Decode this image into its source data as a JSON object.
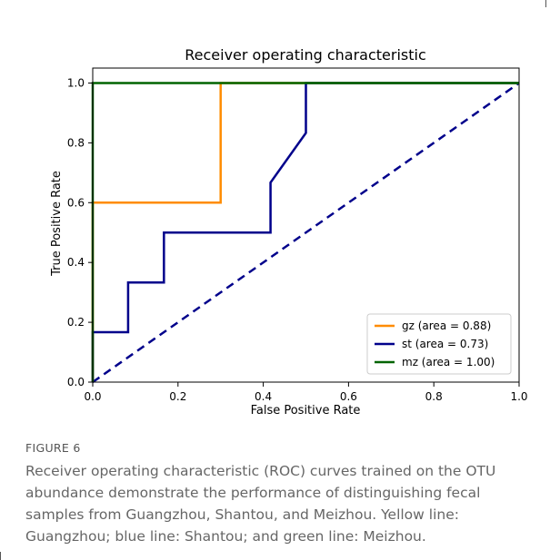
{
  "chart_data": {
    "type": "line",
    "title": "Receiver operating characteristic",
    "xlabel": "False Positive Rate",
    "ylabel": "True Positive Rate",
    "xlim": [
      0.0,
      1.0
    ],
    "ylim": [
      0.0,
      1.05
    ],
    "xticks": [
      "0.0",
      "0.2",
      "0.4",
      "0.6",
      "0.8",
      "1.0"
    ],
    "yticks": [
      "0.0",
      "0.2",
      "0.4",
      "0.6",
      "0.8",
      "1.0"
    ],
    "grid": false,
    "legend_position": "lower-right",
    "series": [
      {
        "name": "gz (area = 0.88)",
        "color": "#ff8c00",
        "x": [
          0.0,
          0.0,
          0.3,
          0.3,
          1.0
        ],
        "y": [
          0.0,
          0.6,
          0.6,
          1.0,
          1.0
        ]
      },
      {
        "name": "st (area = 0.73)",
        "color": "#00008b",
        "x": [
          0.0,
          0.0,
          0.083,
          0.083,
          0.167,
          0.167,
          0.417,
          0.417,
          0.5,
          0.5,
          1.0
        ],
        "y": [
          0.0,
          0.167,
          0.167,
          0.333,
          0.333,
          0.5,
          0.5,
          0.667,
          0.833,
          1.0,
          1.0
        ]
      },
      {
        "name": "mz (area = 1.00)",
        "color": "#006400",
        "x": [
          0.0,
          0.0,
          1.0
        ],
        "y": [
          0.0,
          1.0,
          1.0
        ]
      }
    ],
    "reference_line": {
      "color": "#00008b",
      "style": "dashed",
      "x": [
        0.0,
        1.0
      ],
      "y": [
        0.0,
        1.0
      ]
    }
  },
  "caption": {
    "label": "FIGURE 6",
    "text": "Receiver operating characteristic (ROC) curves trained on the OTU abundance demonstrate the performance of distinguishing fecal samples from Guangzhou, Shantou, and Meizhou. Yellow line: Guangzhou; blue line: Shantou; and green line: Meizhou."
  }
}
